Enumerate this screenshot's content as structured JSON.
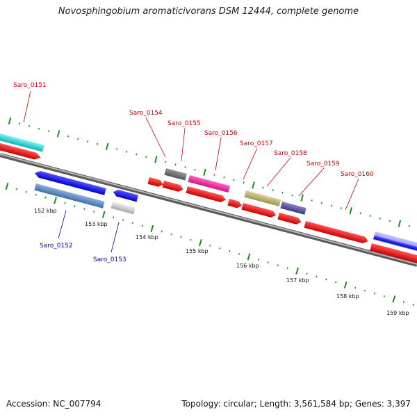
{
  "title": "Novosphingobium aromaticivorans DSM 12444, complete genome",
  "footer": {
    "accession": "Accession: NC_007794",
    "topology": "Topology: circular; Length: 3,561,584 bp; Genes: 3,397"
  },
  "colors": {
    "backbone": "#7f7f7f",
    "top_label": "#cc0000",
    "bottom_label": "#0000aa",
    "ticks": "#1a8c1a"
  },
  "ticks": [
    "152 kbp",
    "153 kbp",
    "154 kbp",
    "155 kbp",
    "156 kbp",
    "157 kbp",
    "158 kbp",
    "159 kbp"
  ],
  "labels_top": [
    "Saro_0151",
    "Saro_0154",
    "Saro_0155",
    "Saro_0156",
    "Saro_0157",
    "Saro_0158",
    "Saro_0159",
    "Saro_0160"
  ],
  "labels_bottom": [
    "Saro_0152",
    "Saro_0153"
  ]
}
